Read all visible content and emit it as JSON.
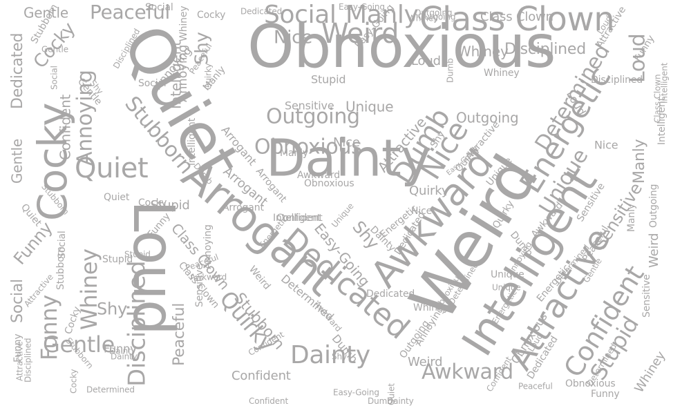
{
  "word_cloud": {
    "text_color": "#a8a7a7",
    "background_color": "#ffffff",
    "words": [
      "Obnoxious",
      "Quiet",
      "Weird",
      "Dainty",
      "Loud",
      "Arrogant",
      "Intelligent",
      "Cocky",
      "Awkward",
      "Class Clown",
      "Attractive",
      "Dedicated",
      "Energetic",
      "Confident",
      "Outgoing",
      "Obnoxious",
      "Social",
      "Manly",
      "Weird",
      "Peaceful",
      "Gentle",
      "Disciplined",
      "Stupid",
      "Unique",
      "Determined",
      "Funny",
      "Whiney",
      "Quirky",
      "Nice",
      "Dumb",
      "Shy",
      "Annoying",
      "Stubborn",
      "Sensitive",
      "Loud",
      "Nice",
      "Quiet",
      "Dainty",
      "Awkward",
      "Gentle",
      "Confident",
      "Dedicated",
      "Intelligent",
      "Cocky",
      "Disciplined",
      "Whiney",
      "Stubborn",
      "Shy",
      "Quirky",
      "Funny",
      "Social",
      "Peaceful",
      "Arrogant",
      "Easy-Going",
      "Class Clown",
      "Unique",
      "Attractive",
      "Manly",
      "Sensitive",
      "Energetic",
      "Determined",
      "Stupid",
      "Outgoing",
      "Obnoxious",
      "Annoying",
      "Dumb",
      "Nice",
      "Whiney",
      "Loud",
      "Weird",
      "Dainty",
      "Shy",
      "Cocky",
      "Unique",
      "Confident",
      "Gentle",
      "Dedicated",
      "Awkward",
      "Class Clown",
      "Quiet",
      "Intelligent",
      "Funny",
      "Peaceful",
      "Stubborn",
      "Social",
      "Energetic",
      "Manly",
      "Attractive",
      "Stupid",
      "Outgoing",
      "Arrogant",
      "Disciplined",
      "Quirky",
      "Sensitive",
      "Easy-Going",
      "Dumb",
      "Annoying",
      "Determined",
      "Whiney",
      "Nice",
      "Cocky",
      "Gentle",
      "Obnoxious",
      "Funny",
      "Dainty",
      "Shy",
      "Unique",
      "Peaceful",
      "Confident",
      "Dedicated",
      "Loud",
      "Weird",
      "Awkward",
      "Social",
      "Stubborn",
      "Arrogant",
      "Attractive",
      "Stupid",
      "Energetic",
      "Quirky",
      "Manly",
      "Determined",
      "Outgoing",
      "Disciplined",
      "Annoying",
      "Class Clown",
      "Easy-Going",
      "Dumb",
      "Intelligent",
      "Sensitive",
      "Whiney",
      "Quiet",
      "Confident",
      "Easy-Going",
      "Whiney",
      "Outgoing",
      "Dedicated",
      "Intelligent",
      "Social",
      "Funny",
      "Loud",
      "Dainty",
      "Stubborn",
      "Attractive",
      "Cocky",
      "Gentle",
      "Awkward",
      "Sensitive",
      "Determined",
      "Peaceful",
      "Obnoxious",
      "Unique",
      "Dumb",
      "Quirky",
      "Shy",
      "Annoying",
      "Confident",
      "Manly",
      "Disciplined",
      "Stupid",
      "Energetic",
      "Nice",
      "Class Clown",
      "Weird",
      "Arrogant",
      "Funny",
      "Intelligent",
      "Whiney",
      "Dedicated",
      "Easy-Going",
      "Outgoing",
      "Annoying",
      "Cocky",
      "Gentle",
      "Quiet",
      "Social",
      "Shy",
      "Attractive",
      "Confident",
      "Stubborn",
      "Dainty",
      "Loud",
      "Peaceful",
      "Unique",
      "Dumb",
      "Obnoxious",
      "Determined",
      "Awkward",
      "Funny"
    ]
  }
}
